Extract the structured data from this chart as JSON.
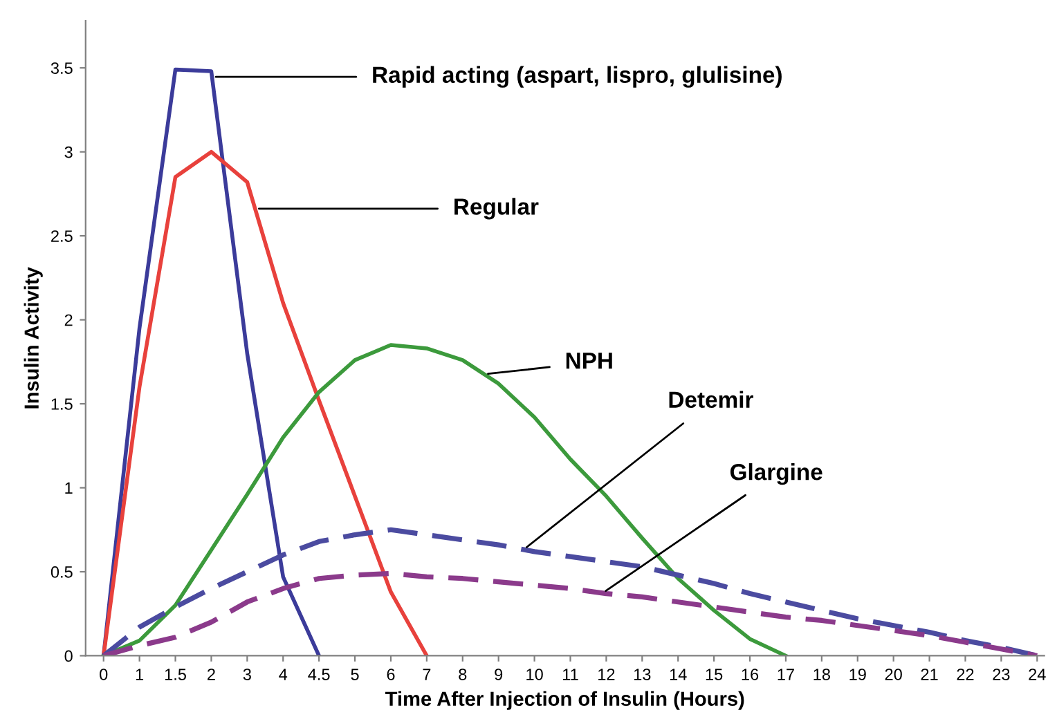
{
  "chart_data": {
    "type": "line",
    "xlabel": "Time After Injection of Insulin (Hours)",
    "ylabel": "Insulin Activity",
    "categories": [
      "0",
      "1",
      "1.5",
      "2",
      "3",
      "4",
      "4.5",
      "5",
      "6",
      "7",
      "8",
      "9",
      "10",
      "11",
      "12",
      "13",
      "14",
      "15",
      "16",
      "17",
      "18",
      "19",
      "20",
      "21",
      "22",
      "23",
      "24"
    ],
    "ylim": [
      0,
      3.78
    ],
    "yticks": [
      0,
      0.5,
      1,
      1.5,
      2,
      2.5,
      3,
      3.5
    ],
    "marker": "none",
    "series": [
      {
        "name": "Rapid acting (aspart, lispro, glulisine)",
        "color": "#3b3b9a",
        "line_style": "solid",
        "values": [
          0,
          1.95,
          3.49,
          3.48,
          1.8,
          0.47,
          0,
          null,
          null,
          null,
          null,
          null,
          null,
          null,
          null,
          null,
          null,
          null,
          null,
          null,
          null,
          null,
          null,
          null,
          null,
          null,
          null
        ]
      },
      {
        "name": "Regular",
        "color": "#e8413c",
        "line_style": "solid",
        "values": [
          0,
          1.6,
          2.85,
          3.0,
          2.82,
          2.1,
          1.52,
          0.95,
          0.38,
          0,
          null,
          null,
          null,
          null,
          null,
          null,
          null,
          null,
          null,
          null,
          null,
          null,
          null,
          null,
          null,
          null,
          null
        ]
      },
      {
        "name": "NPH",
        "color": "#3c9a3c",
        "line_style": "solid",
        "values": [
          0,
          0.09,
          0.3,
          0.63,
          0.96,
          1.3,
          1.57,
          1.76,
          1.85,
          1.83,
          1.76,
          1.62,
          1.42,
          1.17,
          0.95,
          0.7,
          0.46,
          0.27,
          0.1,
          0,
          null,
          null,
          null,
          null,
          null,
          null,
          null
        ]
      },
      {
        "name": "Detemir",
        "color": "#4b4ba0",
        "line_style": "dashed",
        "values": [
          0,
          0.17,
          0.29,
          0.4,
          0.5,
          0.6,
          0.68,
          0.72,
          0.75,
          0.72,
          0.69,
          0.66,
          0.62,
          0.59,
          0.56,
          0.53,
          0.48,
          0.43,
          0.37,
          0.32,
          0.27,
          0.22,
          0.18,
          0.14,
          0.09,
          0.05,
          0
        ]
      },
      {
        "name": "Glargine",
        "color": "#8b3a8b",
        "line_style": "dashed",
        "values": [
          0,
          0.06,
          0.11,
          0.2,
          0.32,
          0.4,
          0.46,
          0.48,
          0.49,
          0.47,
          0.46,
          0.44,
          0.42,
          0.4,
          0.37,
          0.35,
          0.32,
          0.29,
          0.26,
          0.23,
          0.21,
          0.18,
          0.15,
          0.12,
          0.08,
          0.04,
          0
        ]
      }
    ]
  }
}
